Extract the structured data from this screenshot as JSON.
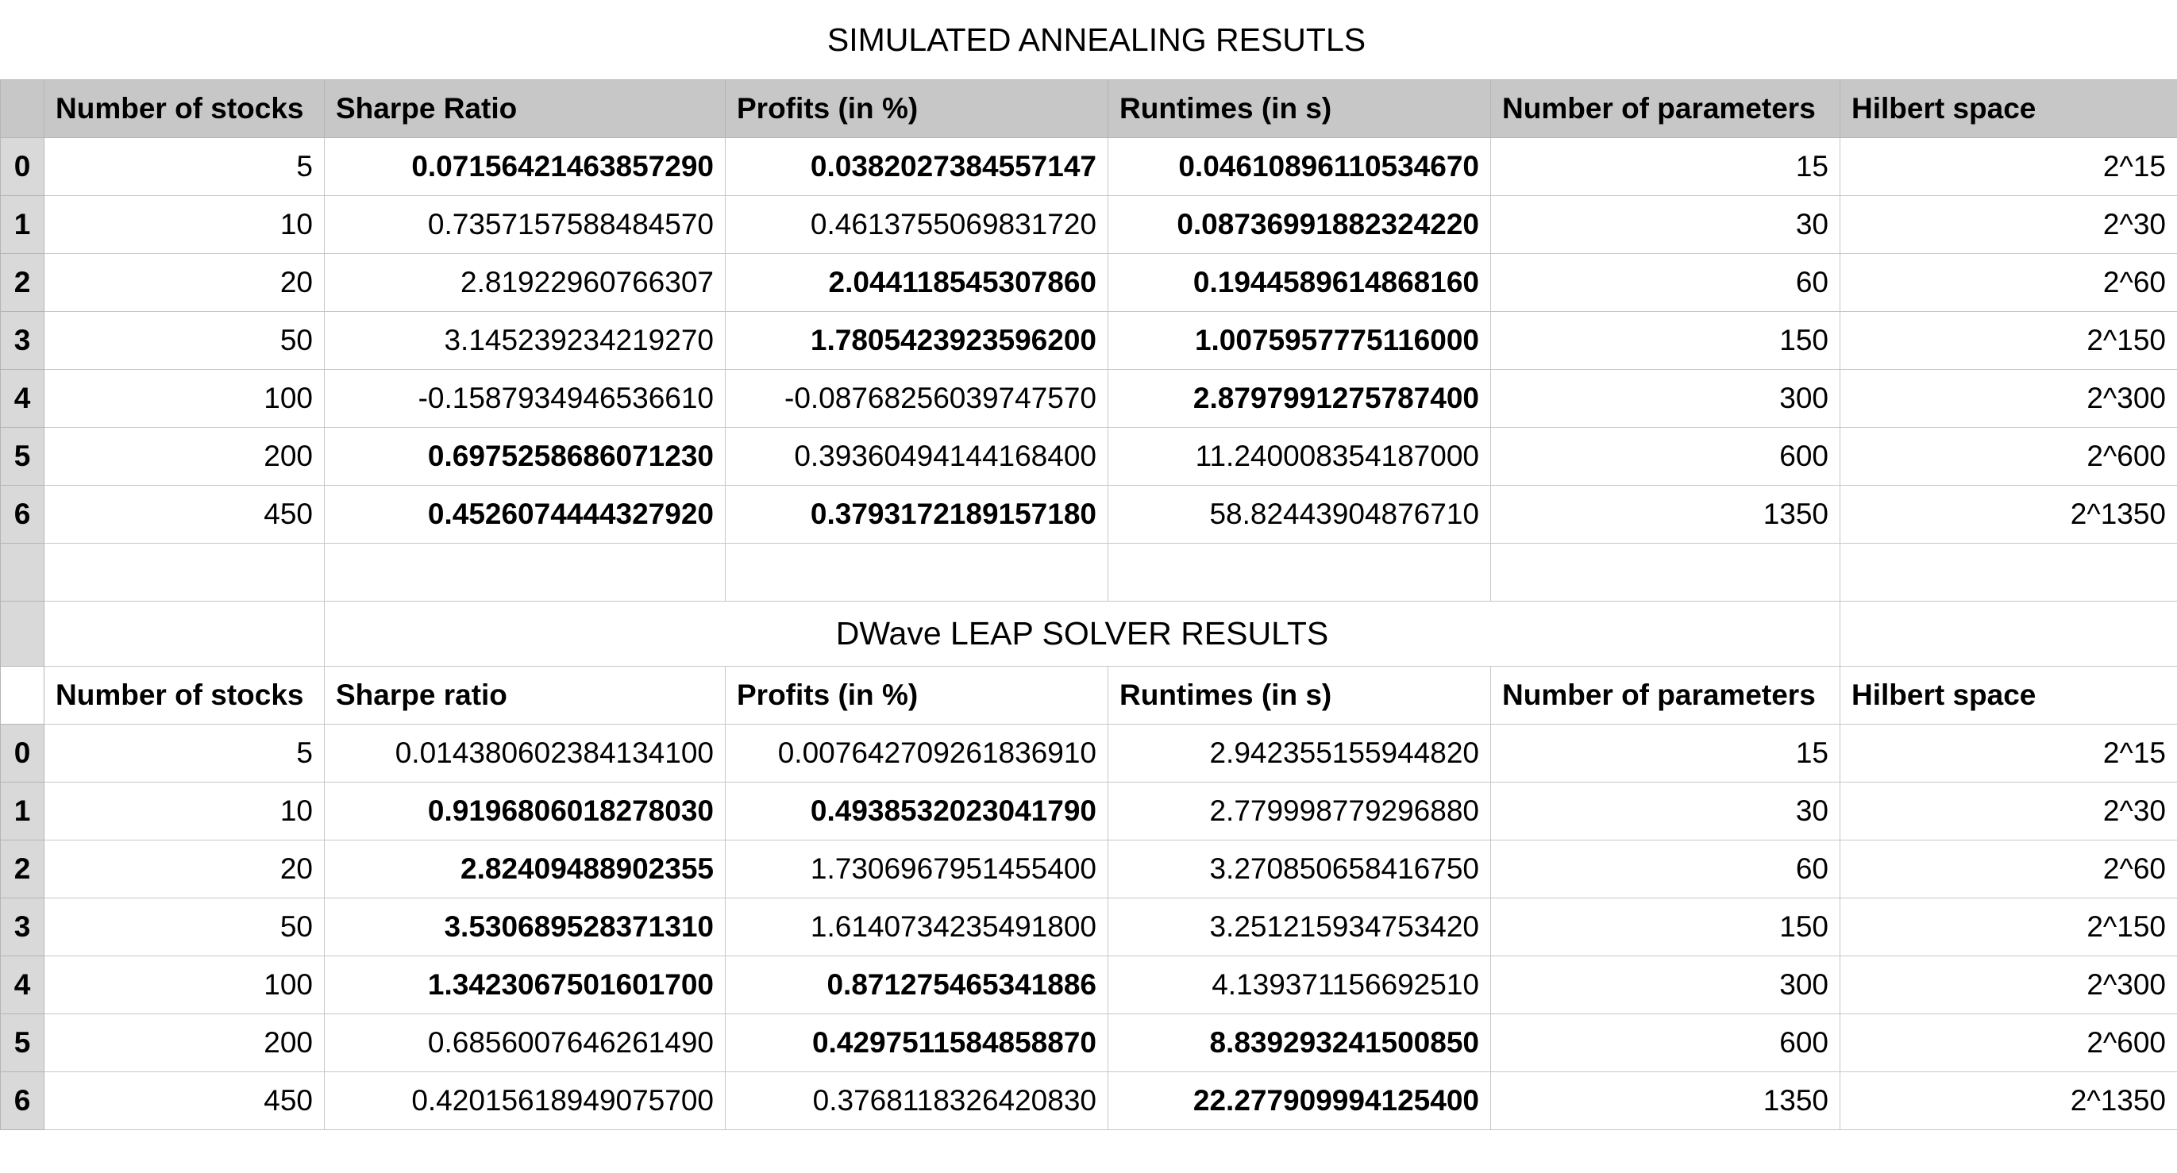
{
  "sa": {
    "title": "SIMULATED ANNEALING RESUTLS",
    "headers": [
      "Number of stocks",
      "Sharpe Ratio",
      "Profits (in %)",
      "Runtimes (in s)",
      "Number of parameters",
      "Hilbert space"
    ],
    "rows": [
      {
        "idx": "0",
        "stocks": "5",
        "sharpe": "0.07156421463857290",
        "profit": "0.0382027384557147",
        "runtime": "0.04610896110534670",
        "params": "15",
        "hilbert": "2^15"
      },
      {
        "idx": "1",
        "stocks": "10",
        "sharpe": "0.7357157588484570",
        "profit": "0.4613755069831720",
        "runtime": "0.08736991882324220",
        "params": "30",
        "hilbert": "2^30"
      },
      {
        "idx": "2",
        "stocks": "20",
        "sharpe": "2.81922960766307",
        "profit": "2.044118545307860",
        "runtime": "0.1944589614868160",
        "params": "60",
        "hilbert": "2^60"
      },
      {
        "idx": "3",
        "stocks": "50",
        "sharpe": "3.145239234219270",
        "profit": "1.7805423923596200",
        "runtime": "1.0075957775116000",
        "params": "150",
        "hilbert": "2^150"
      },
      {
        "idx": "4",
        "stocks": "100",
        "sharpe": "-0.1587934946536610",
        "profit": "-0.08768256039747570",
        "runtime": "2.8797991275787400",
        "params": "300",
        "hilbert": "2^300"
      },
      {
        "idx": "5",
        "stocks": "200",
        "sharpe": "0.6975258686071230",
        "profit": "0.39360494144168400",
        "runtime": "11.240008354187000",
        "params": "600",
        "hilbert": "2^600"
      },
      {
        "idx": "6",
        "stocks": "450",
        "sharpe": "0.4526074444327920",
        "profit": "0.3793172189157180",
        "runtime": "58.82443904876710",
        "params": "1350",
        "hilbert": "2^1350"
      }
    ]
  },
  "dwave": {
    "title": "DWave LEAP SOLVER RESULTS",
    "headers": [
      "Number of stocks",
      "Sharpe ratio",
      "Profits (in %)",
      "Runtimes (in s)",
      "Number of parameters",
      "Hilbert space"
    ],
    "rows": [
      {
        "idx": "0",
        "stocks": "5",
        "sharpe": "0.014380602384134100",
        "profit": "0.007642709261836910",
        "runtime": "2.942355155944820",
        "params": "15",
        "hilbert": "2^15"
      },
      {
        "idx": "1",
        "stocks": "10",
        "sharpe": "0.9196806018278030",
        "profit": "0.4938532023041790",
        "runtime": "2.779998779296880",
        "params": "30",
        "hilbert": "2^30"
      },
      {
        "idx": "2",
        "stocks": "20",
        "sharpe": "2.82409488902355",
        "profit": "1.7306967951455400",
        "runtime": "3.270850658416750",
        "params": "60",
        "hilbert": "2^60"
      },
      {
        "idx": "3",
        "stocks": "50",
        "sharpe": "3.530689528371310",
        "profit": "1.6140734235491800",
        "runtime": "3.251215934753420",
        "params": "150",
        "hilbert": "2^150"
      },
      {
        "idx": "4",
        "stocks": "100",
        "sharpe": "1.3423067501601700",
        "profit": "0.871275465341886",
        "runtime": "4.139371156692510",
        "params": "300",
        "hilbert": "2^300"
      },
      {
        "idx": "5",
        "stocks": "200",
        "sharpe": "0.6856007646261490",
        "profit": "0.4297511584858870",
        "runtime": "8.839293241500850",
        "params": "600",
        "hilbert": "2^600"
      },
      {
        "idx": "6",
        "stocks": "450",
        "sharpe": "0.42015618949075700",
        "profit": "0.3768118326420830",
        "runtime": "22.277909994125400",
        "params": "1350",
        "hilbert": "2^1350"
      }
    ]
  }
}
